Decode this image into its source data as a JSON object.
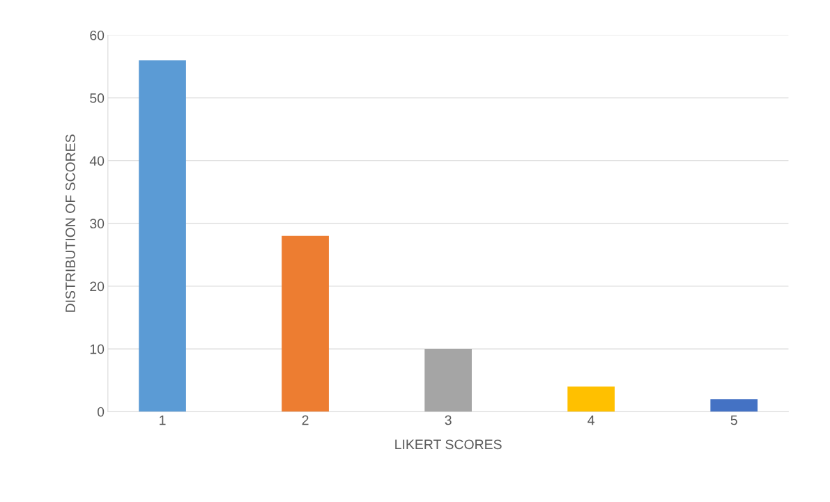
{
  "chart_data": {
    "type": "bar",
    "categories": [
      "1",
      "2",
      "3",
      "4",
      "5"
    ],
    "values": [
      56,
      28,
      10,
      4,
      2
    ],
    "colors": [
      "#5b9bd5",
      "#ed7d31",
      "#a5a5a5",
      "#ffc000",
      "#4472c4"
    ],
    "xlabel": "LIKERT SCORES",
    "ylabel": "DISTRIBUTION OF SCORES",
    "ylim": [
      0,
      60
    ],
    "yticks": [
      0,
      10,
      20,
      30,
      40,
      50,
      60
    ],
    "grid": "y"
  }
}
